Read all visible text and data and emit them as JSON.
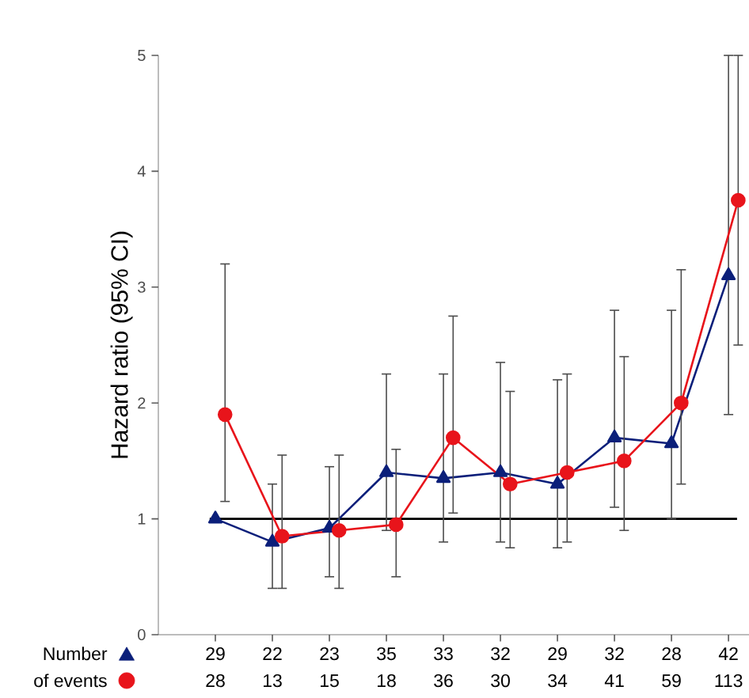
{
  "chart_data": {
    "type": "line",
    "ylabel": "Hazard ratio (95% CI)",
    "categories": [
      null,
      null,
      null,
      null,
      null,
      null,
      null,
      null,
      null,
      null
    ],
    "ylim": [
      0,
      5
    ],
    "yticks": [
      0,
      1,
      2,
      3,
      4,
      5
    ],
    "grid": false,
    "line_style": "solid",
    "series": [
      {
        "color": "#0b1f7a",
        "marker": "triangle",
        "values": [
          1.0,
          0.8,
          0.92,
          1.4,
          1.35,
          1.4,
          1.3,
          1.7,
          1.65,
          3.1
        ],
        "errors": [
          null,
          [
            0.4,
            1.3
          ],
          [
            0.5,
            1.45
          ],
          [
            0.9,
            2.25
          ],
          [
            0.8,
            2.25
          ],
          [
            0.8,
            2.35
          ],
          [
            0.75,
            2.2
          ],
          [
            1.1,
            2.8
          ],
          [
            1.0,
            2.8
          ],
          [
            1.9,
            5
          ]
        ]
      },
      {
        "color": "#e8141b",
        "marker": "circle",
        "values": [
          1.9,
          0.85,
          0.9,
          0.95,
          1.7,
          1.3,
          1.4,
          1.5,
          2.0,
          3.75
        ],
        "errors": [
          [
            1.15,
            3.2
          ],
          [
            0.4,
            1.55
          ],
          [
            0.4,
            1.55
          ],
          [
            0.5,
            1.6
          ],
          [
            1.05,
            2.75
          ],
          [
            0.75,
            2.1
          ],
          [
            0.8,
            2.25
          ],
          [
            0.9,
            2.4
          ],
          [
            1.3,
            3.15
          ],
          [
            2.5,
            5
          ]
        ]
      }
    ],
    "ref_lines": [
      {
        "axis": "y",
        "value": 1,
        "color": "#000000"
      }
    ],
    "annotations": [
      "Number",
      "of events",
      "29",
      "22",
      "23",
      "35",
      "33",
      "32",
      "29",
      "32",
      "28",
      "42",
      "28",
      "13",
      "15",
      "18",
      "36",
      "30",
      "34",
      "41",
      "59",
      "113"
    ]
  }
}
